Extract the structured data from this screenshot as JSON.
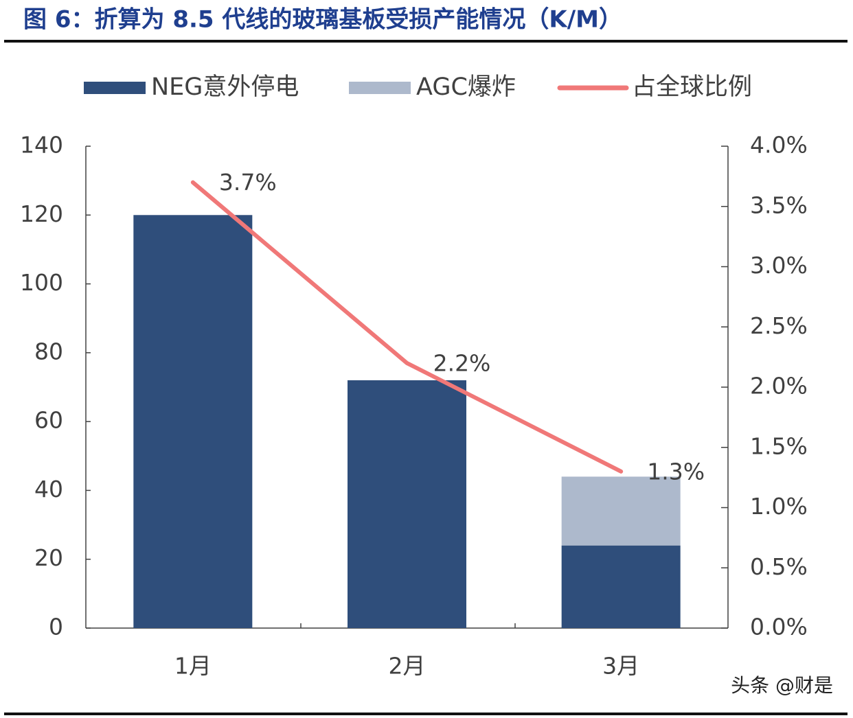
{
  "chart_data": {
    "type": "bar",
    "stacked": true,
    "title": "图 6：折算为 8.5 代线的玻璃基板受损产能情况（K/M）",
    "categories": [
      "1月",
      "2月",
      "3月"
    ],
    "series": [
      {
        "name": "NEG意外停电",
        "color": "#2f4e7b",
        "values": [
          120,
          72,
          24
        ]
      },
      {
        "name": "AGC爆炸",
        "color": "#adb9cc",
        "values": [
          0,
          0,
          20
        ]
      },
      {
        "name": "占全球比例",
        "type": "line",
        "axis": "y2",
        "color": "#f07878",
        "values": [
          3.7,
          2.2,
          1.3
        ],
        "value_labels": [
          "3.7%",
          "2.2%",
          "1.3%"
        ]
      }
    ],
    "ylim": [
      0,
      140
    ],
    "yticks": [
      0,
      20,
      40,
      60,
      80,
      100,
      120,
      140
    ],
    "y2lim": [
      0,
      4
    ],
    "y2ticks": [
      {
        "value": 0,
        "label": "0.0%"
      },
      {
        "value": 0.5,
        "label": "0.5%"
      },
      {
        "value": 1,
        "label": "1.0%"
      },
      {
        "value": 1.5,
        "label": "1.5%"
      },
      {
        "value": 2,
        "label": "2.0%"
      },
      {
        "value": 2.5,
        "label": "2.5%"
      },
      {
        "value": 3,
        "label": "3.0%"
      },
      {
        "value": 3.5,
        "label": "3.5%"
      },
      {
        "value": 4,
        "label": "4.0%"
      }
    ],
    "legend": "top",
    "watermark": "头条 @财是"
  }
}
